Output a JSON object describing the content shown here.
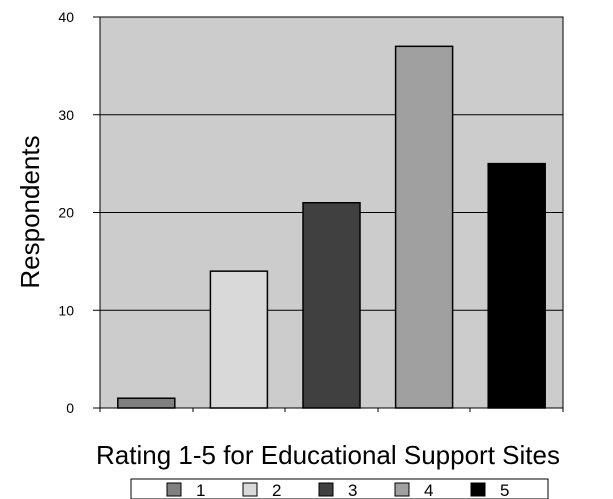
{
  "chart_data": {
    "type": "bar",
    "title": "",
    "xlabel": "Rating 1-5 for Educational Support Sites",
    "ylabel": "Respondents",
    "ylim": [
      0,
      40
    ],
    "yticks": [
      "0",
      "10",
      "20",
      "30",
      "40"
    ],
    "grid": true,
    "legend_position": "bottom",
    "background_color": "#cccccc",
    "series": [
      {
        "name": "1",
        "value": 1,
        "color": "#808080"
      },
      {
        "name": "2",
        "value": 14,
        "color": "#d9d9d9"
      },
      {
        "name": "3",
        "value": 21,
        "color": "#404040"
      },
      {
        "name": "4",
        "value": 37,
        "color": "#a0a0a0"
      },
      {
        "name": "5",
        "value": 25,
        "color": "#000000"
      }
    ]
  }
}
